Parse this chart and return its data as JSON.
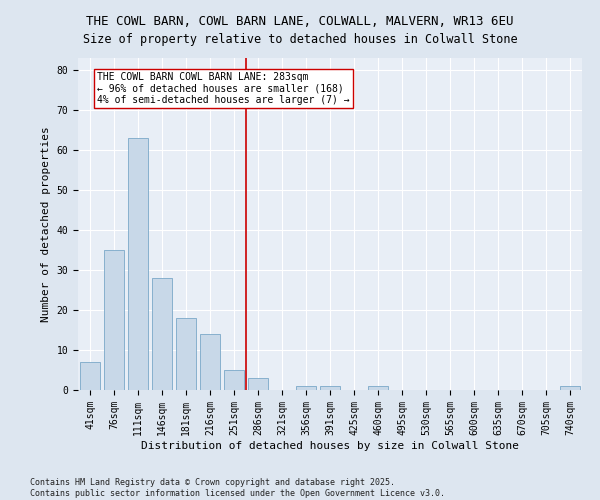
{
  "title": "THE COWL BARN, COWL BARN LANE, COLWALL, MALVERN, WR13 6EU",
  "subtitle": "Size of property relative to detached houses in Colwall Stone",
  "xlabel": "Distribution of detached houses by size in Colwall Stone",
  "ylabel": "Number of detached properties",
  "bar_labels": [
    "41sqm",
    "76sqm",
    "111sqm",
    "146sqm",
    "181sqm",
    "216sqm",
    "251sqm",
    "286sqm",
    "321sqm",
    "356sqm",
    "391sqm",
    "425sqm",
    "460sqm",
    "495sqm",
    "530sqm",
    "565sqm",
    "600sqm",
    "635sqm",
    "670sqm",
    "705sqm",
    "740sqm"
  ],
  "bar_values": [
    7,
    35,
    63,
    28,
    18,
    14,
    5,
    3,
    0,
    1,
    1,
    0,
    1,
    0,
    0,
    0,
    0,
    0,
    0,
    0,
    1
  ],
  "bar_color": "#c8d8e8",
  "bar_edge_color": "#7aa8c8",
  "vline_color": "#cc0000",
  "annotation_text": "THE COWL BARN COWL BARN LANE: 283sqm\n← 96% of detached houses are smaller (168)\n4% of semi-detached houses are larger (7) →",
  "annotation_box_color": "#ffffff",
  "annotation_box_edge": "#cc0000",
  "ylim": [
    0,
    83
  ],
  "yticks": [
    0,
    10,
    20,
    30,
    40,
    50,
    60,
    70,
    80
  ],
  "bg_color": "#dde6f0",
  "plot_bg_color": "#e8eef6",
  "footer": "Contains HM Land Registry data © Crown copyright and database right 2025.\nContains public sector information licensed under the Open Government Licence v3.0.",
  "title_fontsize": 9,
  "axis_label_fontsize": 8,
  "tick_fontsize": 7,
  "annotation_fontsize": 7,
  "footer_fontsize": 6
}
